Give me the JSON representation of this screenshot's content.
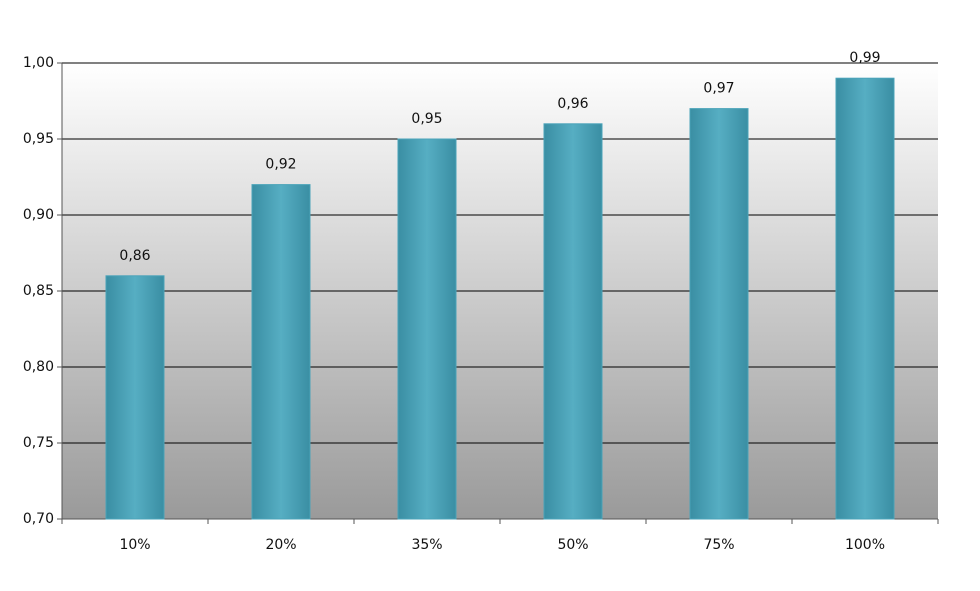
{
  "chart_data": {
    "type": "bar",
    "categories": [
      "10%",
      "20%",
      "35%",
      "50%",
      "75%",
      "100%"
    ],
    "values": [
      0.86,
      0.92,
      0.95,
      0.96,
      0.97,
      0.99
    ],
    "value_labels": [
      "0,86",
      "0,92",
      "0,95",
      "0,96",
      "0,97",
      "0,99"
    ],
    "color": "#4aa3b9",
    "ylim": [
      0.7,
      1.0
    ],
    "yticks": [
      {
        "value": 0.7,
        "label": "0,70"
      },
      {
        "value": 0.75,
        "label": "0,75"
      },
      {
        "value": 0.8,
        "label": "0,80"
      },
      {
        "value": 0.85,
        "label": "0,85"
      },
      {
        "value": 0.9,
        "label": "0,90"
      },
      {
        "value": 0.95,
        "label": "0,95"
      },
      {
        "value": 1.0,
        "label": "1,00"
      }
    ],
    "grid": true
  }
}
